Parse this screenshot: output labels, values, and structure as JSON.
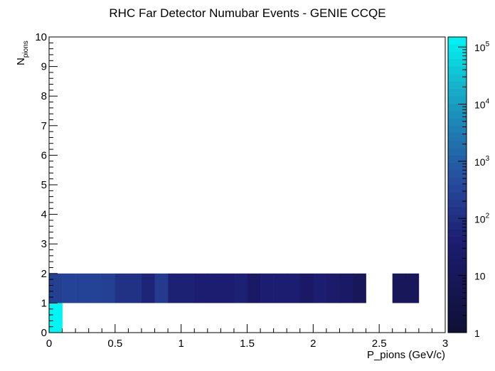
{
  "chart_data": {
    "type": "heatmap",
    "title": "RHC Far Detector Numubar Events - GENIE CCQE",
    "xlabel": "P_pions (GeV/c)",
    "ylabel": "N",
    "ylabel_sub": "pions",
    "xlim": [
      0,
      3
    ],
    "ylim": [
      0,
      10
    ],
    "x_bin_width": 0.1,
    "y_bin_width": 1,
    "x_ticks": [
      {
        "value": 0,
        "label": "0"
      },
      {
        "value": 0.5,
        "label": "0.5"
      },
      {
        "value": 1,
        "label": "1"
      },
      {
        "value": 1.5,
        "label": "1.5"
      },
      {
        "value": 2,
        "label": "2"
      },
      {
        "value": 2.5,
        "label": "2.5"
      },
      {
        "value": 3,
        "label": "3"
      }
    ],
    "y_ticks": [
      {
        "value": 0,
        "label": "0"
      },
      {
        "value": 1,
        "label": "1"
      },
      {
        "value": 2,
        "label": "2"
      },
      {
        "value": 3,
        "label": "3"
      },
      {
        "value": 4,
        "label": "4"
      },
      {
        "value": 5,
        "label": "5"
      },
      {
        "value": 6,
        "label": "6"
      },
      {
        "value": 7,
        "label": "7"
      },
      {
        "value": 8,
        "label": "8"
      },
      {
        "value": 9,
        "label": "9"
      },
      {
        "value": 10,
        "label": "10"
      }
    ],
    "z_scale": "log",
    "zlim": [
      1,
      150000
    ],
    "colorbar_ticks": [
      {
        "value": 1,
        "base": "1",
        "exp": ""
      },
      {
        "value": 10,
        "base": "10",
        "exp": ""
      },
      {
        "value": 100,
        "base": "10",
        "exp": "2"
      },
      {
        "value": 1000,
        "base": "10",
        "exp": "3"
      },
      {
        "value": 10000,
        "base": "10",
        "exp": "4"
      },
      {
        "value": 100000,
        "base": "10",
        "exp": "5"
      }
    ],
    "cells": [
      {
        "x": 0.0,
        "y": 0,
        "z": 150000
      },
      {
        "x": 0.0,
        "y": 1,
        "z": 250
      },
      {
        "x": 0.1,
        "y": 1,
        "z": 300
      },
      {
        "x": 0.2,
        "y": 1,
        "z": 300
      },
      {
        "x": 0.3,
        "y": 1,
        "z": 300
      },
      {
        "x": 0.4,
        "y": 1,
        "z": 250
      },
      {
        "x": 0.5,
        "y": 1,
        "z": 120
      },
      {
        "x": 0.6,
        "y": 1,
        "z": 120
      },
      {
        "x": 0.7,
        "y": 1,
        "z": 60
      },
      {
        "x": 0.8,
        "y": 1,
        "z": 180
      },
      {
        "x": 0.9,
        "y": 1,
        "z": 50
      },
      {
        "x": 1.0,
        "y": 1,
        "z": 50
      },
      {
        "x": 1.1,
        "y": 1,
        "z": 40
      },
      {
        "x": 1.2,
        "y": 1,
        "z": 40
      },
      {
        "x": 1.3,
        "y": 1,
        "z": 40
      },
      {
        "x": 1.4,
        "y": 1,
        "z": 50
      },
      {
        "x": 1.5,
        "y": 1,
        "z": 20
      },
      {
        "x": 1.6,
        "y": 1,
        "z": 40
      },
      {
        "x": 1.7,
        "y": 1,
        "z": 40
      },
      {
        "x": 1.8,
        "y": 1,
        "z": 40
      },
      {
        "x": 1.9,
        "y": 1,
        "z": 20
      },
      {
        "x": 2.0,
        "y": 1,
        "z": 40
      },
      {
        "x": 2.1,
        "y": 1,
        "z": 30
      },
      {
        "x": 2.2,
        "y": 1,
        "z": 20
      },
      {
        "x": 2.3,
        "y": 1,
        "z": 10
      },
      {
        "x": 2.6,
        "y": 1,
        "z": 10
      },
      {
        "x": 2.7,
        "y": 1,
        "z": 10
      }
    ]
  }
}
